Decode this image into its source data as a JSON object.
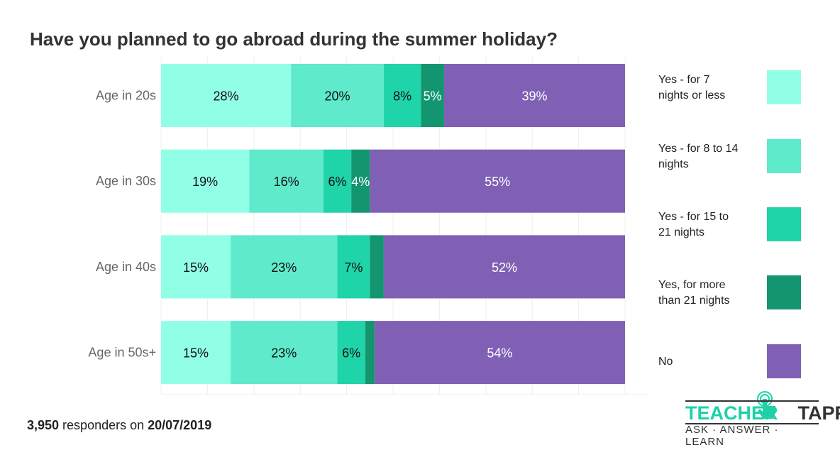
{
  "chart_data": {
    "type": "bar",
    "orientation": "horizontal",
    "stacked": true,
    "title": "Have you planned to go abroad during the summer holiday?",
    "categories": [
      "Age in 20s",
      "Age in 30s",
      "Age in 40s",
      "Age in 50s+"
    ],
    "series": [
      {
        "name": "Yes - for 7 nights or less",
        "color": "#91ffe6",
        "values": [
          28,
          19,
          15,
          15
        ],
        "labels": [
          "28%",
          "19%",
          "15%",
          "15%"
        ],
        "label_color": "#111111"
      },
      {
        "name": "Yes - for 8 to 14 nights",
        "color": "#5eeacb",
        "values": [
          20,
          16,
          23,
          23
        ],
        "labels": [
          "20%",
          "16%",
          "23%",
          "23%"
        ],
        "label_color": "#111111"
      },
      {
        "name": "Yes - for 15 to 21 nights",
        "color": "#1fd4a8",
        "values": [
          8,
          6,
          7,
          6
        ],
        "labels": [
          "8%",
          "6%",
          "7%",
          "6%"
        ],
        "label_color": "#111111"
      },
      {
        "name": "Yes, for more than 21 nights",
        "color": "#13966f",
        "values": [
          5,
          4,
          3,
          2
        ],
        "labels": [
          "5%",
          "4%",
          "",
          ""
        ],
        "label_color": "#ffffff"
      },
      {
        "name": "No",
        "color": "#7f60b4",
        "values": [
          39,
          55,
          52,
          54
        ],
        "labels": [
          "39%",
          "55%",
          "52%",
          "54%"
        ],
        "label_color": "#ffffff"
      }
    ],
    "xlim": [
      0,
      100
    ],
    "grid": true,
    "legend_placement": "right"
  },
  "legend_lines": [
    [
      "Yes - for 7",
      "nights or less"
    ],
    [
      "Yes - for 8 to 14",
      "nights"
    ],
    [
      "Yes - for 15 to",
      "21 nights"
    ],
    [
      "Yes, for more",
      "than 21 nights"
    ],
    [
      "No"
    ]
  ],
  "footer": {
    "count": "3,950",
    "middle": " responders on ",
    "date": "20/07/2019"
  },
  "logo": {
    "word1": "TEACHER",
    "word2": "TAPP",
    "tagline": "ASK · ANSWER · LEARN"
  }
}
